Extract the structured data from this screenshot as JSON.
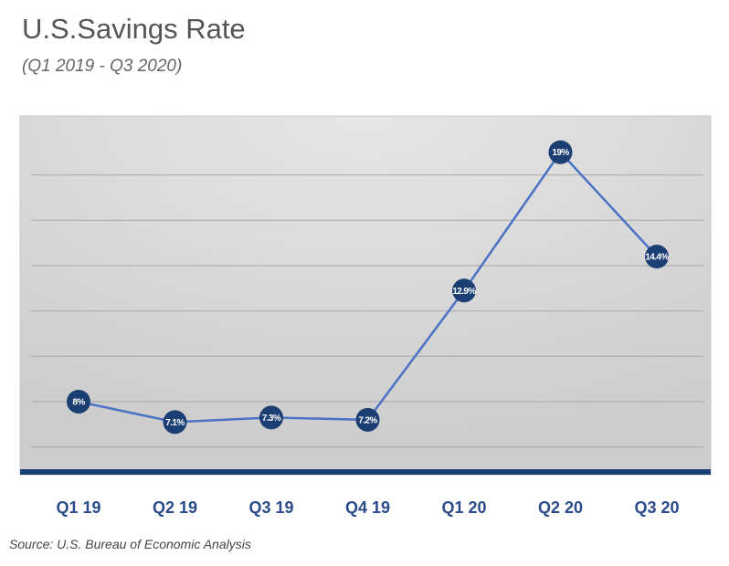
{
  "chart_data": {
    "type": "line",
    "title": "U.S.Savings Rate",
    "subtitle": "(Q1 2019 - Q3 2020)",
    "source": "Source: U.S. Bureau of Economic Analysis",
    "categories": [
      "Q1 19",
      "Q2 19",
      "Q3 19",
      "Q4 19",
      "Q1 20",
      "Q2 20",
      "Q3 20"
    ],
    "series": [
      {
        "name": "Savings Rate",
        "values": [
          8,
          7.1,
          7.3,
          7.2,
          12.9,
          19,
          14.4
        ]
      }
    ],
    "labels": [
      "8%",
      "7.1%",
      "7.3%",
      "7.2%",
      "12.9%",
      "19%",
      "14.4%"
    ],
    "xlabel": "",
    "ylabel": "",
    "ylim": [
      4.9,
      20.6
    ],
    "grid": true,
    "legend": "none",
    "colors": {
      "line": "#4a72c4",
      "marker": "#1b3f73",
      "axis": "#1b3f73",
      "tick": "#2a4a8a"
    }
  }
}
